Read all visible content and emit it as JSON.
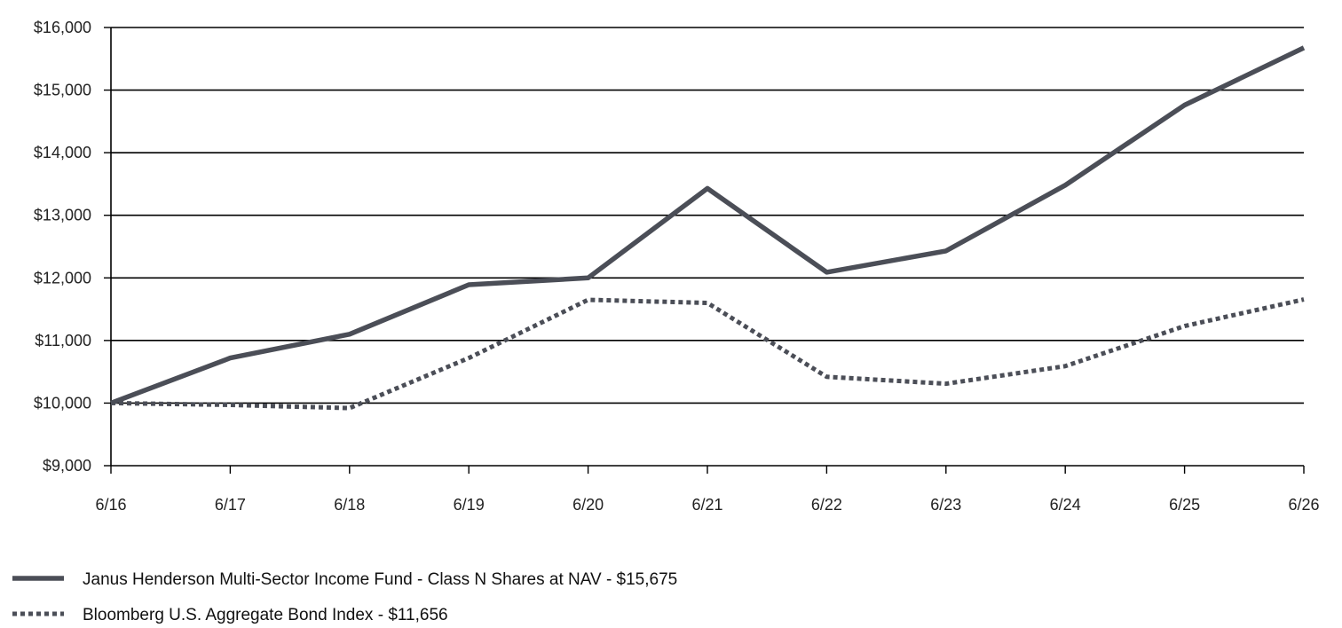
{
  "chart_data": {
    "type": "line",
    "x": [
      "6/16",
      "6/17",
      "6/18",
      "6/19",
      "6/20",
      "6/21",
      "6/22",
      "6/23",
      "6/24",
      "6/25",
      "6/26"
    ],
    "ylim": [
      9000,
      16000
    ],
    "yticks": [
      9000,
      10000,
      11000,
      12000,
      13000,
      14000,
      15000,
      16000
    ],
    "ytick_labels": [
      "$9,000",
      "$10,000",
      "$11,000",
      "$12,000",
      "$13,000",
      "$14,000",
      "$15,000",
      "$16,000"
    ],
    "grid": "horizontal",
    "legend_position": "bottom-left",
    "series": [
      {
        "name": "Janus Henderson Multi-Sector Income Fund - Class N Shares at NAV - $15,675",
        "style": "solid",
        "color": "#4b4e57",
        "values": [
          10000,
          10720,
          11100,
          11890,
          12000,
          13430,
          12090,
          12430,
          13480,
          14760,
          15675
        ]
      },
      {
        "name": "Bloomberg U.S. Aggregate Bond Index - $11,656",
        "style": "dotted",
        "color": "#4b4e57",
        "values": [
          10000,
          9970,
          9920,
          10720,
          11650,
          11600,
          10420,
          10310,
          10590,
          11230,
          11656
        ]
      }
    ]
  }
}
